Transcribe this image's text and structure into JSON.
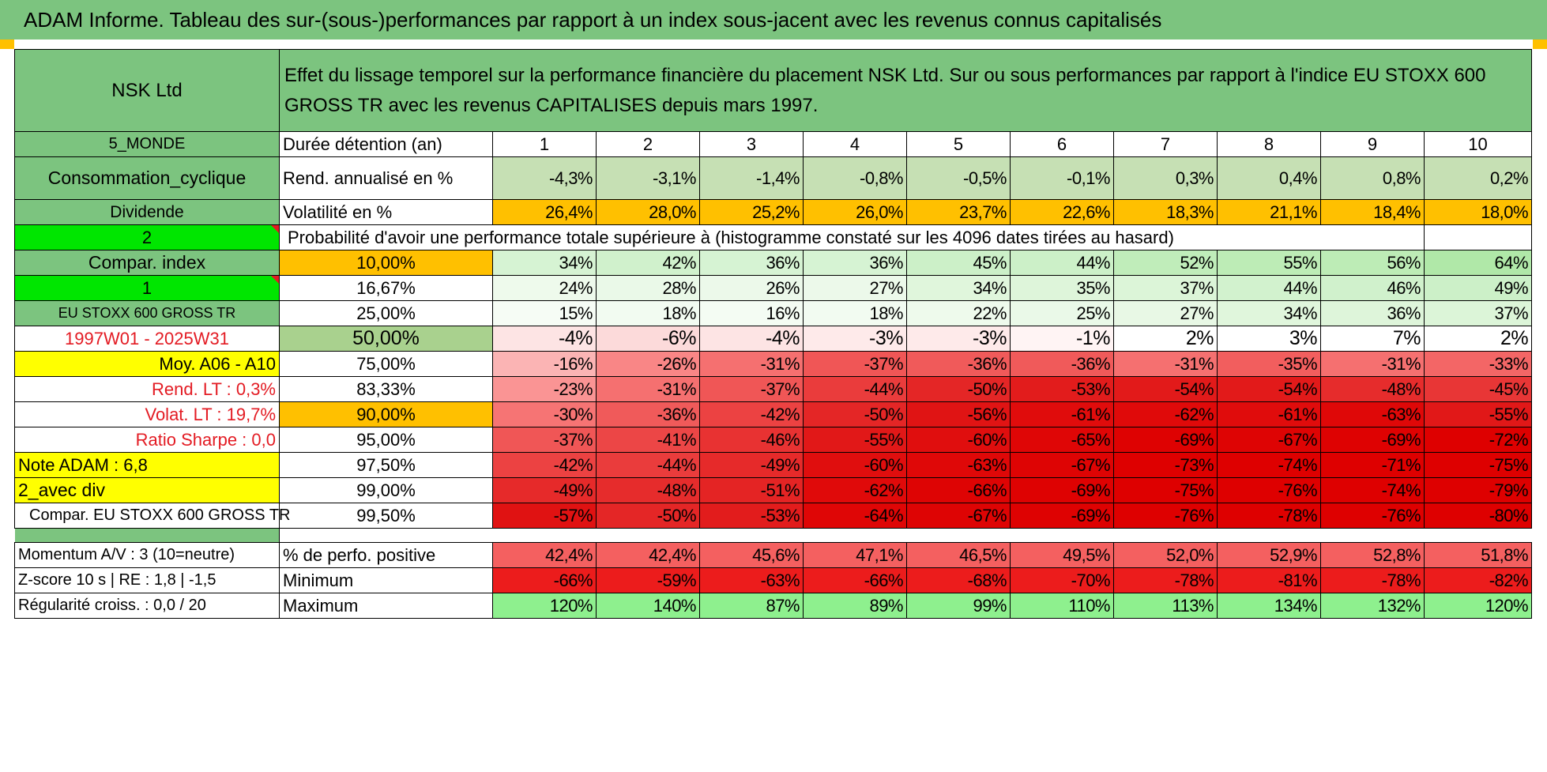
{
  "title": "ADAM Informe. Tableau des sur-(sous-)performances par rapport à un index sous-jacent avec les revenus connus capitalisés",
  "header": {
    "company": "NSK Ltd",
    "description": "Effet du lissage temporel sur la performance financière du placement NSK Ltd. Sur ou sous performances par rapport à l'indice EU STOXX 600 GROSS TR avec les revenus CAPITALISES depuis mars 1997."
  },
  "left_labels": {
    "region": "5_MONDE",
    "sector": "Consommation_cyclique",
    "dividend": "Dividende",
    "choice_2": "2",
    "compar_index": "Compar. index",
    "choice_1": "1",
    "index_name": "EU STOXX 600 GROSS TR",
    "period": "1997W01 - 2025W31",
    "moy": "Moy. A06 - A10",
    "rend_lt": "Rend. LT :    0,3%",
    "volat_lt": "Volat. LT :    19,7%",
    "ratio_sharpe": "Ratio Sharpe :     0,0",
    "note_adam": "Note ADAM : 6,8",
    "avec_div": "2_avec div",
    "compar_full": "Compar. EU STOXX 600 GROSS TR"
  },
  "row_labels": {
    "duration": "Durée détention (an)",
    "rend": "Rend. annualisé en %",
    "vol": "Volatilité en %",
    "prob_header": "Probabilité d'avoir une performance totale supérieure à (histogramme constaté sur les 4096 dates tirées au hasard)"
  },
  "years": [
    "1",
    "2",
    "3",
    "4",
    "5",
    "6",
    "7",
    "8",
    "9",
    "10"
  ],
  "rend": [
    "-4,3%",
    "-3,1%",
    "-1,4%",
    "-0,8%",
    "-0,5%",
    "-0,1%",
    "0,3%",
    "0,4%",
    "0,8%",
    "0,2%"
  ],
  "vol": [
    "26,4%",
    "28,0%",
    "25,2%",
    "26,0%",
    "23,7%",
    "22,6%",
    "18,3%",
    "21,1%",
    "18,4%",
    "18,0%"
  ],
  "percentile_rows": [
    {
      "p": "10,00%",
      "values": [
        "34%",
        "42%",
        "36%",
        "36%",
        "45%",
        "44%",
        "52%",
        "55%",
        "56%",
        "64%"
      ],
      "colors": [
        "#d6f3d3",
        "#d0f1cc",
        "#d6f3d3",
        "#d6f3d3",
        "#ccf0c8",
        "#ccf0c8",
        "#c0edba",
        "#bdecb6",
        "#bdecb6",
        "#b0e8a8"
      ]
    },
    {
      "p": "16,67%",
      "values": [
        "24%",
        "28%",
        "26%",
        "27%",
        "34%",
        "35%",
        "37%",
        "44%",
        "46%",
        "49%"
      ],
      "colors": [
        "#eefaec",
        "#eaf9e8",
        "#ecf9ea",
        "#ecf9ea",
        "#e0f6dc",
        "#def5da",
        "#dcf5d8",
        "#d2f2ce",
        "#d0f1cc",
        "#ccf0c8"
      ]
    },
    {
      "p": "25,00%",
      "values": [
        "15%",
        "18%",
        "16%",
        "18%",
        "22%",
        "25%",
        "27%",
        "34%",
        "36%",
        "37%"
      ],
      "colors": [
        "#f6fcf5",
        "#f2fbf1",
        "#f4fcf3",
        "#f2fbf1",
        "#eefaec",
        "#eaf9e8",
        "#e8f8e5",
        "#e0f6dc",
        "#def5da",
        "#dcf5d8"
      ]
    },
    {
      "p": "50,00%",
      "values": [
        "-4%",
        "-6%",
        "-4%",
        "-3%",
        "-3%",
        "-1%",
        "2%",
        "3%",
        "7%",
        "2%"
      ],
      "colors": [
        "#fde4e4",
        "#fcdada",
        "#fde4e4",
        "#feeaea",
        "#feeaea",
        "#fff4f4",
        "#ffffff",
        "#ffffff",
        "#ffffff",
        "#ffffff"
      ]
    },
    {
      "p": "75,00%",
      "values": [
        "-16%",
        "-26%",
        "-31%",
        "-37%",
        "-36%",
        "-36%",
        "-31%",
        "-35%",
        "-31%",
        "-33%"
      ],
      "colors": [
        "#fbb4b4",
        "#f98686",
        "#f57070",
        "#f05656",
        "#f05a5a",
        "#f05a5a",
        "#f57070",
        "#f25e5e",
        "#f57070",
        "#f36666"
      ]
    },
    {
      "p": "83,33%",
      "values": [
        "-23%",
        "-31%",
        "-37%",
        "-44%",
        "-50%",
        "-53%",
        "-54%",
        "-54%",
        "-48%",
        "-45%"
      ],
      "colors": [
        "#fa9494",
        "#f57070",
        "#f05656",
        "#ea3c3c",
        "#e42626",
        "#e21c1c",
        "#e21a1a",
        "#e21a1a",
        "#e62c2c",
        "#e83636"
      ]
    },
    {
      "p": "90,00%",
      "values": [
        "-30%",
        "-36%",
        "-42%",
        "-50%",
        "-56%",
        "-61%",
        "-62%",
        "-61%",
        "-63%",
        "-55%"
      ],
      "colors": [
        "#f67474",
        "#f05a5a",
        "#ec4242",
        "#e42626",
        "#e01414",
        "#e00c0c",
        "#e00a0a",
        "#e00c0c",
        "#df0808",
        "#e11818"
      ]
    },
    {
      "p": "95,00%",
      "values": [
        "-37%",
        "-41%",
        "-46%",
        "-55%",
        "-60%",
        "-65%",
        "-69%",
        "-67%",
        "-69%",
        "-72%"
      ],
      "colors": [
        "#f05656",
        "#ec4646",
        "#e83232",
        "#e11818",
        "#e00e0e",
        "#df0606",
        "#de0202",
        "#de0404",
        "#de0202",
        "#de0000"
      ]
    },
    {
      "p": "97,50%",
      "values": [
        "-42%",
        "-44%",
        "-49%",
        "-60%",
        "-63%",
        "-67%",
        "-73%",
        "-74%",
        "-71%",
        "-75%"
      ],
      "colors": [
        "#ec4242",
        "#ea3c3c",
        "#e62a2a",
        "#e00e0e",
        "#df0808",
        "#de0404",
        "#de0000",
        "#de0000",
        "#de0000",
        "#de0000"
      ]
    },
    {
      "p": "99,00%",
      "values": [
        "-49%",
        "-48%",
        "-51%",
        "-62%",
        "-66%",
        "-69%",
        "-75%",
        "-76%",
        "-74%",
        "-79%"
      ],
      "colors": [
        "#e62a2a",
        "#e62c2c",
        "#e42424",
        "#e00a0a",
        "#de0404",
        "#de0202",
        "#de0000",
        "#de0000",
        "#de0000",
        "#de0000"
      ]
    },
    {
      "p": "99,50%",
      "values": [
        "-57%",
        "-50%",
        "-53%",
        "-64%",
        "-67%",
        "-69%",
        "-76%",
        "-78%",
        "-76%",
        "-80%"
      ],
      "colors": [
        "#e01212",
        "#e42626",
        "#e21c1c",
        "#df0606",
        "#de0404",
        "#de0202",
        "#de0000",
        "#de0000",
        "#de0000",
        "#de0000"
      ]
    }
  ],
  "footer": {
    "momentum": "Momentum A/V : 3 (10=neutre)",
    "zscore": "Z-score 10 s | RE : 1,8 | -1,5",
    "regularite": "Régularité croiss. : 0,0 / 20",
    "pos_label": "% de perfo. positive",
    "min_label": "Minimum",
    "max_label": "Maximum",
    "pos": [
      "42,4%",
      "42,4%",
      "45,6%",
      "47,1%",
      "46,5%",
      "49,5%",
      "52,0%",
      "52,9%",
      "52,8%",
      "51,8%"
    ],
    "min": [
      "-66%",
      "-59%",
      "-63%",
      "-66%",
      "-68%",
      "-70%",
      "-78%",
      "-81%",
      "-78%",
      "-82%"
    ],
    "max": [
      "120%",
      "140%",
      "87%",
      "89%",
      "99%",
      "110%",
      "113%",
      "134%",
      "132%",
      "120%"
    ]
  },
  "colors": {
    "title_green": "#7cc47f",
    "bright_green": "#00e600",
    "yellow": "#ffff00",
    "orange": "#ffc000",
    "label_red": "#e31b23",
    "rend_green": "#c6e0b4",
    "max_green": "#8ef08e",
    "min_red": "#ec1c1c",
    "pos_red": "#f46060"
  }
}
